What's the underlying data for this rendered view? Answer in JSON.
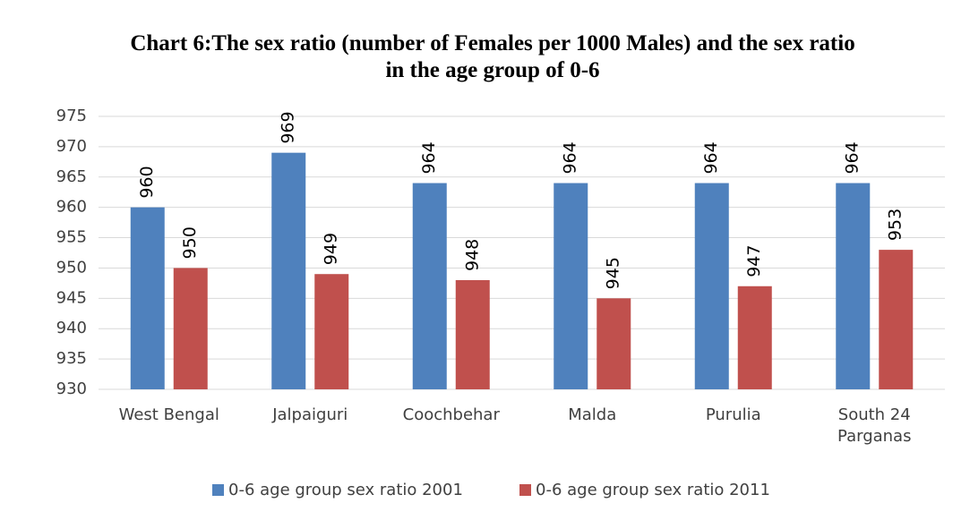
{
  "chart_data": {
    "type": "bar",
    "title": "Chart 6:The sex ratio (number of Females per 1000 Males) and the sex ratio in the age group of 0-6",
    "categories": [
      "West Bengal",
      "Jalpaiguri",
      "Coochbehar",
      "Malda",
      "Purulia",
      "South 24 Parganas"
    ],
    "series": [
      {
        "name": "0-6 age group sex ratio 2001",
        "color": "#4f81bd",
        "values": [
          960,
          969,
          964,
          964,
          964,
          964
        ]
      },
      {
        "name": "0-6 age group sex ratio 2011",
        "color": "#c0504d",
        "values": [
          950,
          949,
          948,
          945,
          947,
          953
        ]
      }
    ],
    "ylim": [
      930,
      975
    ],
    "yticks": [
      930,
      935,
      940,
      945,
      950,
      955,
      960,
      965,
      970,
      975
    ],
    "grid": true,
    "legend": "bottom"
  }
}
